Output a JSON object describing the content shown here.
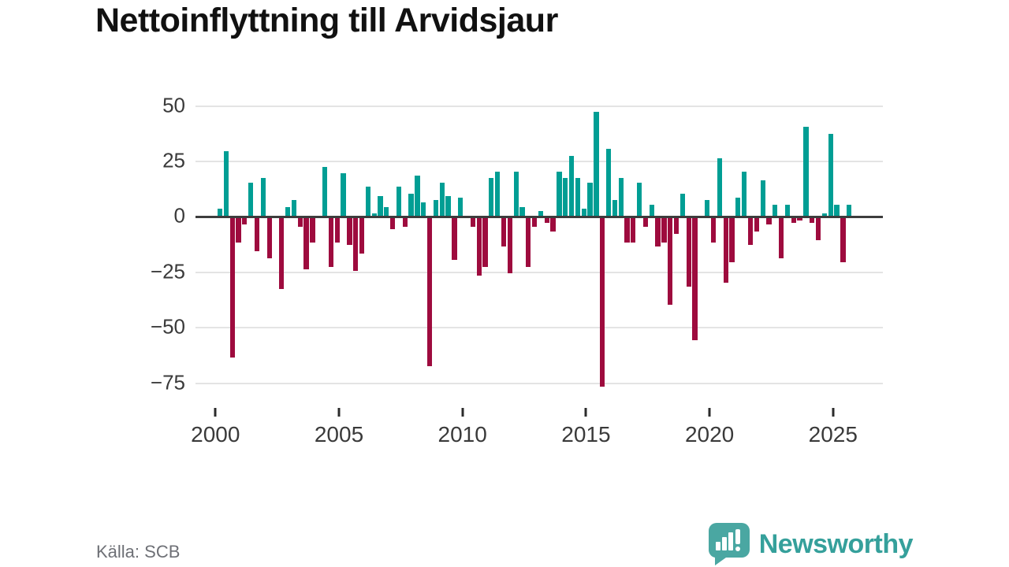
{
  "title": "Nettoinflyttning till Arvidsjaur",
  "source": "Källa: SCB",
  "brand": {
    "name": "Newsworthy",
    "icon": "bar-chart-speech-bubble-icon"
  },
  "colors": {
    "positive": "#009E94",
    "negative": "#9E0B3E",
    "zero_line": "#3D3D3D",
    "grid": "#E4E4E4",
    "axis_text": "#3A3A3A",
    "title_text": "#111111",
    "source_text": "#6E7076",
    "brand_text": "#35A09B",
    "brand_bubble": "#4AA7A2",
    "background": "#FFFFFF"
  },
  "y_axis": {
    "tick_labels": [
      "50",
      "25",
      "0",
      "−25",
      "−50",
      "−75"
    ],
    "tick_values": [
      50,
      25,
      0,
      -25,
      -50,
      -75
    ]
  },
  "x_axis": {
    "tick_labels": [
      "2000",
      "2005",
      "2010",
      "2015",
      "2020",
      "2025"
    ],
    "tick_values": [
      2000,
      2005,
      2010,
      2015,
      2020,
      2025
    ]
  },
  "chart_data": {
    "type": "bar",
    "title": "Nettoinflyttning till Arvidsjaur",
    "xlabel": "",
    "ylabel": "",
    "frequency": "quarterly",
    "start_period": "2000Q1",
    "end_period": "2025Q3",
    "values": [
      3,
      29,
      -63,
      -11,
      -3,
      15,
      -15,
      17,
      -18,
      0,
      -32,
      4,
      7,
      -4,
      -23,
      -11,
      0,
      22,
      -22,
      -11,
      19,
      -12,
      -24,
      -16,
      13,
      1,
      9,
      4,
      -5,
      13,
      -4,
      10,
      18,
      6,
      -67,
      7,
      15,
      9,
      -19,
      8,
      0,
      -4,
      -26,
      -22,
      17,
      20,
      -13,
      -25,
      20,
      4,
      -22,
      -4,
      2,
      -2,
      -6,
      20,
      17,
      27,
      17,
      3,
      15,
      47,
      -76,
      30,
      7,
      17,
      -11,
      -11,
      15,
      -4,
      5,
      -13,
      -11,
      -39,
      -7,
      10,
      -31,
      -55,
      0,
      7,
      -11,
      26,
      -29,
      -20,
      8,
      20,
      -12,
      -6,
      16,
      -3,
      5,
      -18,
      5,
      -2,
      -1,
      40,
      -2,
      -10,
      1,
      37,
      5,
      -20,
      5
    ],
    "y_ticks": [
      50,
      25,
      0,
      -25,
      -50,
      -75
    ],
    "x_ticks": [
      2000,
      2005,
      2010,
      2015,
      2020,
      2025
    ],
    "ylim": [
      -80,
      55
    ],
    "grid": true,
    "legend": false,
    "positive_color": "#009E94",
    "negative_color": "#9E0B3E"
  }
}
